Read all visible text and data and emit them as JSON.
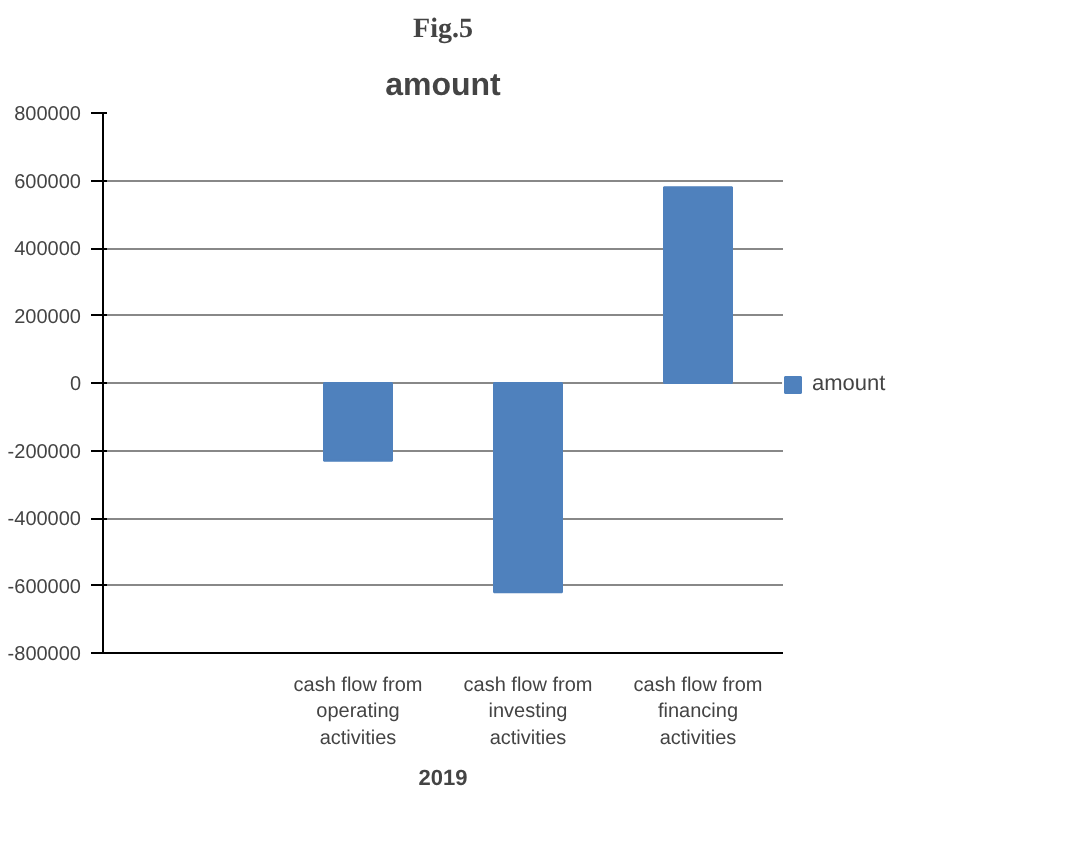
{
  "chart_data": {
    "type": "bar",
    "title": "amount",
    "categories": [
      null,
      "cash flow from operating activities",
      "cash flow from investing activities",
      "cash flow from financing activities"
    ],
    "series": [
      {
        "name": "amount",
        "color": "#4f81bd",
        "values": [
          null,
          -230000,
          -620000,
          580000
        ]
      }
    ],
    "ylim": [
      -800000,
      800000
    ],
    "yticks": [
      -800000,
      -600000,
      -400000,
      -200000,
      0,
      200000,
      400000,
      600000,
      800000
    ],
    "grid": "y",
    "legend": "right",
    "annotations": [
      "Fig.5",
      "2019"
    ]
  }
}
